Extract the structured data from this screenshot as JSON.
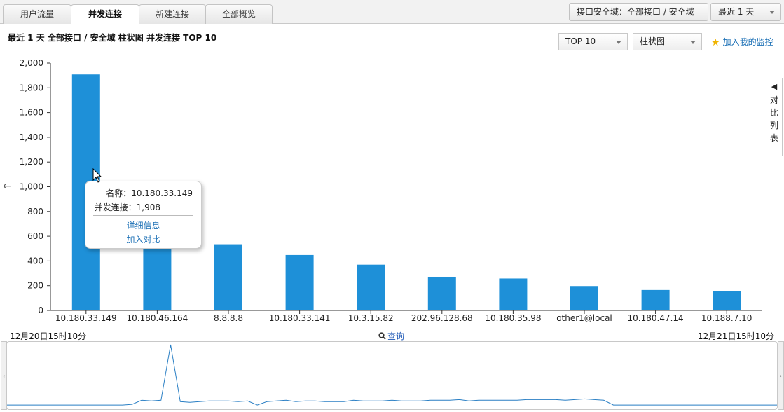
{
  "tabs": [
    {
      "label": "用户流量",
      "active": false
    },
    {
      "label": "并发连接",
      "active": true
    },
    {
      "label": "新建连接",
      "active": false
    },
    {
      "label": "全部概览",
      "active": false
    }
  ],
  "top_controls": {
    "interface_domain": "接口安全域：全部接口 / 安全域",
    "time_range": "最近 1 天"
  },
  "subtitle": "最近 1 天  全部接口 / 安全域  柱状图  并发连接  TOP 10",
  "selects": {
    "top_n": "TOP 10",
    "chart_type": "柱状图"
  },
  "add_monitor": "加入我的监控",
  "compare_panel": {
    "arrow": "◀",
    "chars": [
      "对",
      "比",
      "列",
      "表"
    ]
  },
  "tooltip": {
    "name_label": "名称：10.180.33.149",
    "value_label": "并发连接：1,908",
    "detail_link": "详细信息",
    "compare_link": "加入对比"
  },
  "range": {
    "start": "12月20日15时10分",
    "end": "12月21日15时10分",
    "query": "查询"
  },
  "colors": {
    "bar": "#1e90d8",
    "line": "#2a7fc4"
  },
  "chart_data": {
    "type": "bar",
    "categories": [
      "10.180.33.149",
      "10.180.46.164",
      "8.8.8.8",
      "10.180.33.141",
      "10.3.15.82",
      "202.96.128.68",
      "10.180.35.98",
      "other1@local",
      "10.180.47.14",
      "10.188.7.10"
    ],
    "values": [
      1908,
      870,
      535,
      448,
      370,
      272,
      258,
      197,
      165,
      153
    ],
    "ylim": [
      0,
      2000
    ],
    "yticks": [
      "0",
      "200",
      "400",
      "600",
      "800",
      "1,000",
      "1,200",
      "1,400",
      "1,600",
      "1,800",
      "2,000"
    ],
    "grid": false,
    "legend": "none"
  },
  "overview_data": {
    "type": "line",
    "values": [
      3,
      3,
      3,
      3,
      3,
      3,
      3,
      3,
      3,
      3,
      3,
      3,
      3,
      4,
      10,
      9,
      10,
      92,
      8,
      7,
      8,
      9,
      9,
      9,
      8,
      9,
      3,
      8,
      9,
      10,
      8,
      9,
      9,
      8,
      8,
      8,
      10,
      9,
      9,
      9,
      10,
      9,
      9,
      9,
      10,
      10,
      10,
      11,
      9,
      10,
      10,
      10,
      10,
      10,
      11,
      11,
      11,
      11,
      10,
      11,
      12,
      11,
      10,
      3,
      3,
      3,
      3,
      3,
      3,
      3,
      3,
      3,
      3,
      3,
      3,
      3,
      3,
      3,
      3,
      3,
      3
    ]
  }
}
